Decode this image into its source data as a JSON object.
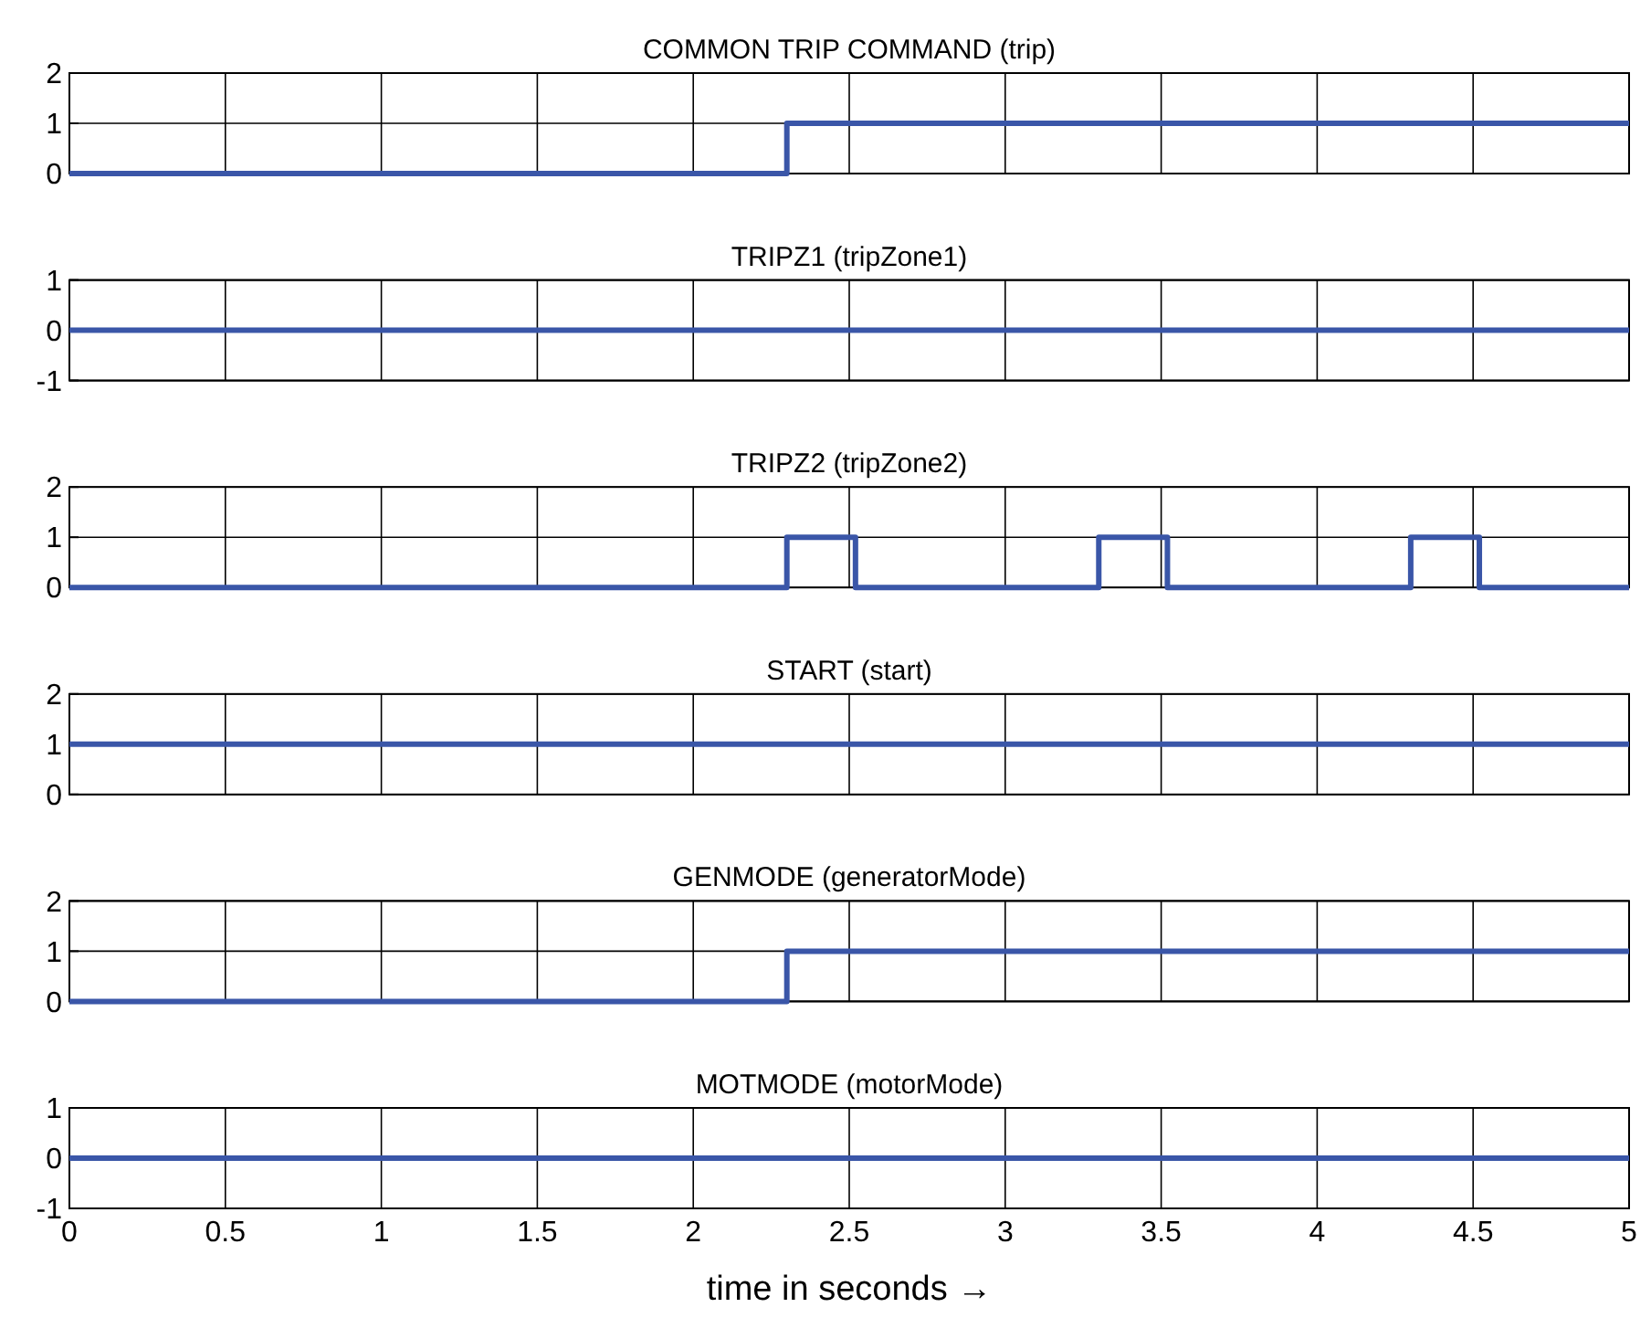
{
  "chart_data": [
    {
      "type": "step",
      "title": "COMMON TRIP COMMAND  (trip)",
      "x": [
        0,
        2.3,
        5
      ],
      "series": [
        {
          "color": "#3a56a8",
          "values": [
            0,
            1,
            1
          ]
        }
      ],
      "xlim": [
        0,
        5
      ],
      "xticks": [
        0,
        0.5,
        1,
        1.5,
        2,
        2.5,
        3,
        3.5,
        4,
        4.5,
        5
      ],
      "ylim": [
        0,
        2
      ],
      "yticks": [
        0,
        1,
        2
      ],
      "grid": true,
      "tick_labels": "y"
    },
    {
      "type": "step",
      "title": "TRIPZ1 (tripZone1)",
      "x": [
        0,
        5
      ],
      "series": [
        {
          "color": "#3a56a8",
          "values": [
            0,
            0
          ]
        }
      ],
      "xlim": [
        0,
        5
      ],
      "xticks": [
        0,
        0.5,
        1,
        1.5,
        2,
        2.5,
        3,
        3.5,
        4,
        4.5,
        5
      ],
      "ylim": [
        -1,
        1
      ],
      "yticks": [
        -1,
        0,
        1
      ],
      "grid": true,
      "tick_labels": "y"
    },
    {
      "type": "step",
      "title": "TRIPZ2  (tripZone2)",
      "x": [
        0,
        2.3,
        2.52,
        3.3,
        3.52,
        4.3,
        4.52,
        5
      ],
      "series": [
        {
          "color": "#3a56a8",
          "values": [
            0,
            1,
            0,
            1,
            0,
            1,
            0,
            0
          ]
        }
      ],
      "xlim": [
        0,
        5
      ],
      "xticks": [
        0,
        0.5,
        1,
        1.5,
        2,
        2.5,
        3,
        3.5,
        4,
        4.5,
        5
      ],
      "ylim": [
        0,
        2
      ],
      "yticks": [
        0,
        1,
        2
      ],
      "grid": true,
      "tick_labels": "y"
    },
    {
      "type": "step",
      "title": "START  (start)",
      "x": [
        0,
        5
      ],
      "series": [
        {
          "color": "#3a56a8",
          "values": [
            1,
            1
          ]
        }
      ],
      "xlim": [
        0,
        5
      ],
      "xticks": [
        0,
        0.5,
        1,
        1.5,
        2,
        2.5,
        3,
        3.5,
        4,
        4.5,
        5
      ],
      "ylim": [
        0,
        2
      ],
      "yticks": [
        0,
        1,
        2
      ],
      "grid": true,
      "tick_labels": "y"
    },
    {
      "type": "step",
      "title": "GENMODE (generatorMode)",
      "x": [
        0,
        2.3,
        5
      ],
      "series": [
        {
          "color": "#3a56a8",
          "values": [
            0,
            1,
            1
          ]
        }
      ],
      "xlim": [
        0,
        5
      ],
      "xticks": [
        0,
        0.5,
        1,
        1.5,
        2,
        2.5,
        3,
        3.5,
        4,
        4.5,
        5
      ],
      "ylim": [
        0,
        2
      ],
      "yticks": [
        0,
        1,
        2
      ],
      "grid": true,
      "tick_labels": "y"
    },
    {
      "type": "step",
      "title": "MOTMODE (motorMode)",
      "x": [
        0,
        5
      ],
      "series": [
        {
          "color": "#3a56a8",
          "values": [
            0,
            0
          ]
        }
      ],
      "xlim": [
        0,
        5
      ],
      "xticks": [
        0,
        0.5,
        1,
        1.5,
        2,
        2.5,
        3,
        3.5,
        4,
        4.5,
        5
      ],
      "ylim": [
        -1,
        1
      ],
      "yticks": [
        -1,
        0,
        1
      ],
      "grid": true,
      "xlabel": "time in seconds  →"
    }
  ]
}
